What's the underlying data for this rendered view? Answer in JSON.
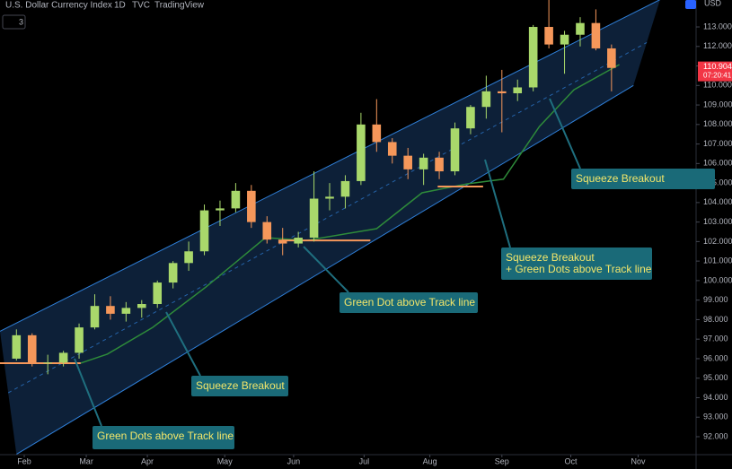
{
  "header": {
    "symbol": "U.S. Dollar Currency Index",
    "interval": "1D",
    "exchange": "TVC",
    "source": "TradingView",
    "indicators": "3",
    "currency": "USD",
    "countdown": "07:20:41"
  },
  "chart_data": {
    "type": "candlestick",
    "candles": {
      "open": [
        96.0,
        97.2,
        95.8,
        95.8,
        96.3,
        97.6,
        98.7,
        98.3,
        98.6,
        98.8,
        99.9,
        100.9,
        101.5,
        103.6,
        103.7,
        104.6,
        103.0,
        102.1,
        101.9,
        102.2,
        104.2,
        104.3,
        105.1,
        108.0,
        107.1,
        106.4,
        105.7,
        106.3,
        105.6,
        107.8,
        108.9,
        109.7,
        109.6,
        109.9,
        113.0,
        112.1,
        112.6,
        113.2,
        111.9
      ],
      "high": [
        97.5,
        97.3,
        96.2,
        96.4,
        97.8,
        99.3,
        99.2,
        98.9,
        99.0,
        100.0,
        101.0,
        102.0,
        103.9,
        104.1,
        105.0,
        104.9,
        103.3,
        102.7,
        102.5,
        105.6,
        105.0,
        105.4,
        108.6,
        109.3,
        107.3,
        106.8,
        106.5,
        106.6,
        108.1,
        109.0,
        110.5,
        110.8,
        110.3,
        113.1,
        114.4,
        112.8,
        113.5,
        113.9,
        112.1
      ],
      "low": [
        95.9,
        95.6,
        95.2,
        95.6,
        96.0,
        97.5,
        98.0,
        97.9,
        98.1,
        98.6,
        99.6,
        100.5,
        101.3,
        102.8,
        103.5,
        102.7,
        101.9,
        101.3,
        101.7,
        102.0,
        103.6,
        103.7,
        104.9,
        106.6,
        106.0,
        105.2,
        104.9,
        105.2,
        105.4,
        107.5,
        108.3,
        107.6,
        109.2,
        109.7,
        111.9,
        110.6,
        112.0,
        111.8,
        109.7
      ],
      "close": [
        97.2,
        95.8,
        95.8,
        96.3,
        97.6,
        98.7,
        98.3,
        98.6,
        98.8,
        99.9,
        100.9,
        101.5,
        103.6,
        103.7,
        104.6,
        103.0,
        102.1,
        101.9,
        102.2,
        104.2,
        104.3,
        105.1,
        108.0,
        107.1,
        106.4,
        105.7,
        106.3,
        105.6,
        107.8,
        108.9,
        109.7,
        109.6,
        109.9,
        113.0,
        112.1,
        112.6,
        113.2,
        111.9,
        110.9
      ],
      "up_color": "#a9d86b",
      "down_color": "#f5975a"
    },
    "ma": {
      "x": [
        4.1,
        5.8,
        8.7,
        12.1,
        15.9,
        18.5,
        23.0,
        25.9,
        28.8,
        31.1,
        33.4,
        35.6,
        38.5
      ],
      "values": [
        95.77,
        96.23,
        97.6,
        99.67,
        102.2,
        102.06,
        102.66,
        104.5,
        104.96,
        105.2,
        107.9,
        109.78,
        111.07
      ],
      "color": "#2e8b3a"
    },
    "track_lines": [
      {
        "x": [
          -1.05,
          4.1
        ],
        "y": 95.77
      },
      {
        "x": [
          17.0,
          22.6
        ],
        "y": 102.06
      },
      {
        "x": [
          26.9,
          29.8
        ],
        "y": 104.82
      }
    ],
    "channel": {
      "upper": {
        "x": [
          -1.05,
          41.1
        ],
        "y": [
          97.4,
          114.4
        ]
      },
      "lower": {
        "x": [
          0,
          39.4
        ],
        "y": [
          91.1,
          110.0
        ]
      },
      "color": "#2f7fd8",
      "fill": "#0d2038"
    },
    "last_price": 110.904,
    "xlim": [
      -1.05,
      43.4
    ],
    "ylim": [
      91.08,
      114.38
    ],
    "xticks": [
      {
        "value": 0.5,
        "label": "Feb"
      },
      {
        "value": 4.46,
        "label": "Mar"
      },
      {
        "value": 8.36,
        "label": "Apr"
      },
      {
        "value": 13.3,
        "label": "May"
      },
      {
        "value": 17.7,
        "label": "Jun"
      },
      {
        "value": 22.2,
        "label": "Jul"
      },
      {
        "value": 26.4,
        "label": "Aug"
      },
      {
        "value": 31.0,
        "label": "Sep"
      },
      {
        "value": 35.4,
        "label": "Oct"
      },
      {
        "value": 39.7,
        "label": "Nov"
      }
    ],
    "yticks": [
      {
        "value": 92,
        "label": "92.000"
      },
      {
        "value": 93,
        "label": "93.000"
      },
      {
        "value": 94,
        "label": "94.000"
      },
      {
        "value": 95,
        "label": "95.000"
      },
      {
        "value": 96,
        "label": "96.000"
      },
      {
        "value": 97,
        "label": "97.000"
      },
      {
        "value": 98,
        "label": "98.000"
      },
      {
        "value": 99,
        "label": "99.000"
      },
      {
        "value": 100,
        "label": "100.000"
      },
      {
        "value": 101,
        "label": "101.000"
      },
      {
        "value": 102,
        "label": "102.000"
      },
      {
        "value": 103,
        "label": "103.000"
      },
      {
        "value": 104,
        "label": "104.000"
      },
      {
        "value": 105,
        "label": "105.000"
      },
      {
        "value": 106,
        "label": "106.000"
      },
      {
        "value": 107,
        "label": "107.000"
      },
      {
        "value": 108,
        "label": "108.000"
      },
      {
        "value": 109,
        "label": "109.000"
      },
      {
        "value": 110,
        "label": "110.000"
      },
      {
        "value": 111,
        "label": "111.000"
      },
      {
        "value": 112,
        "label": "112.000"
      },
      {
        "value": 113,
        "label": "113.000"
      }
    ],
    "annotations": [
      [
        "Squeeze Breakout"
      ],
      [
        "Squeeze Breakout",
        "+ Green Dots above Track line"
      ],
      [
        "Green Dot above Track line"
      ],
      [
        "Squeeze Breakout"
      ],
      [
        "Green Dots above Track line"
      ]
    ]
  }
}
